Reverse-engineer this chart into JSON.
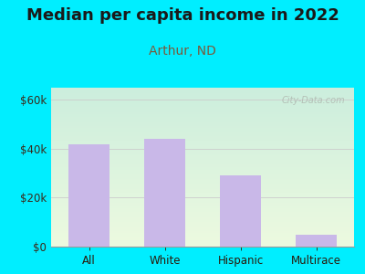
{
  "title": "Median per capita income in 2022",
  "subtitle": "Arthur, ND",
  "categories": [
    "All",
    "White",
    "Hispanic",
    "Multirace"
  ],
  "values": [
    42000,
    44000,
    29000,
    5000
  ],
  "bar_color": "#c9b8e8",
  "title_fontsize": 13,
  "subtitle_fontsize": 10,
  "subtitle_color": "#7a5a3a",
  "title_color": "#1a1a1a",
  "yticks": [
    0,
    20000,
    40000,
    60000
  ],
  "ytick_labels": [
    "$0",
    "$20k",
    "$40k",
    "$60k"
  ],
  "ylim": [
    0,
    65000
  ],
  "bg_outer": "#00eeff",
  "watermark": "City-Data.com",
  "tick_color": "#3a2a1a",
  "axis_label_color": "#2a1a0a",
  "grid_color": "#cccccc"
}
